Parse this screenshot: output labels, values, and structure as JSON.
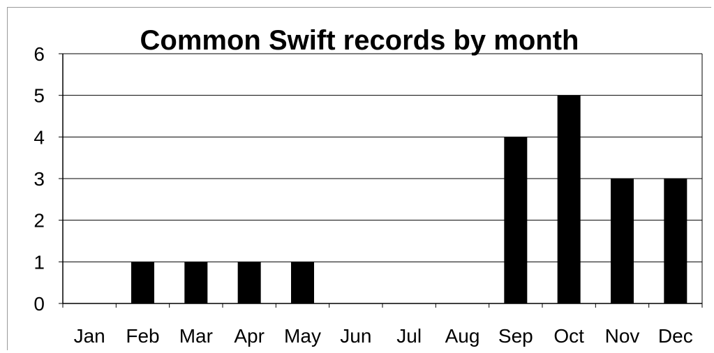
{
  "chart_data": {
    "type": "bar",
    "title": "Common Swift records by month",
    "categories": [
      "Jan",
      "Feb",
      "Mar",
      "Apr",
      "May",
      "Jun",
      "Jul",
      "Aug",
      "Sep",
      "Oct",
      "Nov",
      "Dec"
    ],
    "values": [
      0,
      1,
      1,
      1,
      1,
      0,
      0,
      0,
      4,
      5,
      3,
      3
    ],
    "ylim": [
      0,
      6
    ],
    "yticks": [
      "0",
      "1",
      "2",
      "3",
      "4",
      "5",
      "6"
    ],
    "grid": "horizontal",
    "bar_color": "#000000",
    "legend": "none"
  }
}
